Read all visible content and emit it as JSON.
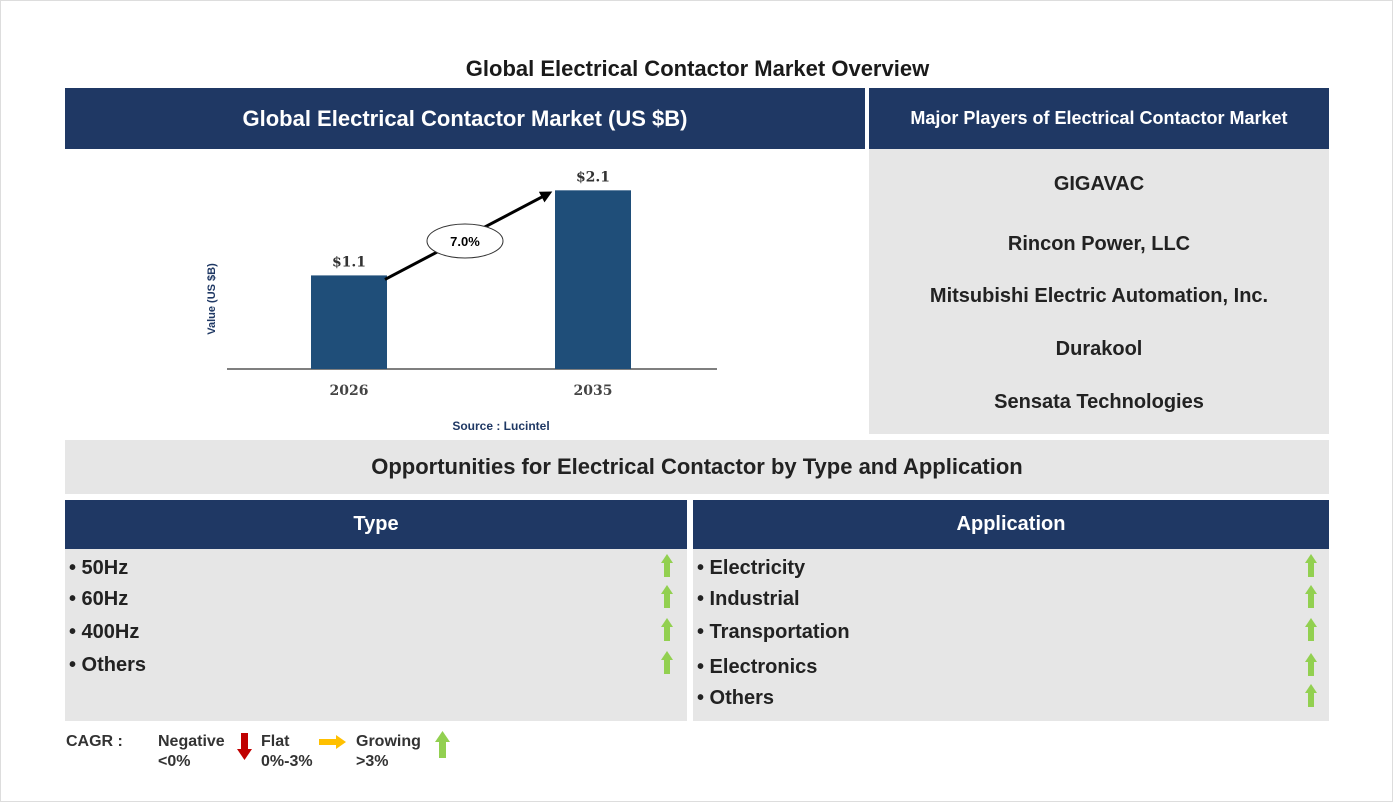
{
  "page_title": "Global Electrical Contactor Market Overview",
  "market_header": "Global Electrical Contactor Market (US $B)",
  "players_header": "Major Players of Electrical Contactor Market",
  "players": [
    "GIGAVAC",
    "Rincon Power, LLC",
    "Mitsubishi Electric Automation, Inc.",
    "Durakool",
    "Sensata Technologies"
  ],
  "opportunities_header": "Opportunities for Electrical Contactor by Type and Application",
  "type": {
    "header": "Type",
    "items": [
      "• 50Hz",
      "• 60Hz",
      "• 400Hz",
      "• Others"
    ],
    "trend": [
      "growing",
      "growing",
      "growing",
      "growing"
    ]
  },
  "application": {
    "header": "Application",
    "items": [
      "• Electricity",
      "• Industrial",
      "• Transportation",
      "• Electronics",
      "• Others"
    ],
    "trend": [
      "growing",
      "growing",
      "growing",
      "growing",
      "growing"
    ]
  },
  "legend": {
    "label": "CAGR :",
    "negative": "Negative",
    "negative_range": "<0%",
    "flat": "Flat",
    "flat_range": "0%-3%",
    "growing": "Growing",
    "growing_range": ">3%"
  },
  "colors": {
    "header": "#1f3864",
    "bar": "#1f4e79",
    "negative": "#c00000",
    "flat": "#ffc000",
    "growing": "#92d050",
    "panel": "#e6e6e6"
  },
  "chart_data": {
    "type": "bar",
    "categories": [
      "2026",
      "2035"
    ],
    "values": [
      1.1,
      2.1
    ],
    "data_labels": [
      "$1.1",
      "$2.1"
    ],
    "ylabel": "Value (US $B)",
    "xlabel": "",
    "cagr_annotation": "7.0%",
    "source": "Source : Lucintel",
    "grid": false
  }
}
